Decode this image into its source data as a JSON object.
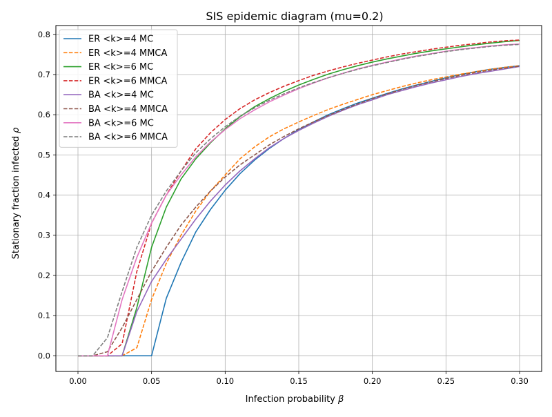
{
  "chart_data": {
    "type": "line",
    "title": "SIS epidemic diagram (mu=0.2)",
    "xlabel": "Infection probability",
    "xlabel_symbol": "β",
    "ylabel": "Stationary fraction infected",
    "ylabel_symbol": "ρ",
    "xlim": [
      -0.015,
      0.315
    ],
    "ylim": [
      -0.039,
      0.822
    ],
    "xticks": [
      0.0,
      0.05,
      0.1,
      0.15,
      0.2,
      0.25,
      0.3
    ],
    "xtick_labels": [
      "0.00",
      "0.05",
      "0.10",
      "0.15",
      "0.20",
      "0.25",
      "0.30"
    ],
    "yticks": [
      0.0,
      0.1,
      0.2,
      0.3,
      0.4,
      0.5,
      0.6,
      0.7,
      0.8
    ],
    "ytick_labels": [
      "0.0",
      "0.1",
      "0.2",
      "0.3",
      "0.4",
      "0.5",
      "0.6",
      "0.7",
      "0.8"
    ],
    "grid": true,
    "legend_position": "top-left",
    "x": [
      0.0,
      0.01,
      0.02,
      0.03,
      0.04,
      0.05,
      0.06,
      0.07,
      0.08,
      0.09,
      0.1,
      0.11,
      0.12,
      0.13,
      0.14,
      0.15,
      0.16,
      0.17,
      0.18,
      0.19,
      0.2,
      0.21,
      0.22,
      0.23,
      0.24,
      0.25,
      0.26,
      0.27,
      0.28,
      0.29,
      0.3
    ],
    "series": [
      {
        "name": "ER <k>=4 MC",
        "color": "#1f77b4",
        "dash": "solid",
        "values": [
          0.0,
          0.0,
          0.0,
          0.0,
          0.0,
          0.0,
          0.143,
          0.232,
          0.308,
          0.364,
          0.412,
          0.453,
          0.487,
          0.516,
          0.541,
          0.563,
          0.582,
          0.6,
          0.615,
          0.629,
          0.641,
          0.653,
          0.664,
          0.674,
          0.683,
          0.692,
          0.7,
          0.707,
          0.713,
          0.718,
          0.722
        ]
      },
      {
        "name": "ER <k>=4 MMCA",
        "color": "#ff7f0e",
        "dash": "dashed",
        "values": [
          0.0,
          0.0,
          0.0,
          0.0,
          0.02,
          0.14,
          0.23,
          0.3,
          0.36,
          0.41,
          0.45,
          0.49,
          0.52,
          0.545,
          0.565,
          0.582,
          0.598,
          0.613,
          0.626,
          0.638,
          0.65,
          0.66,
          0.67,
          0.679,
          0.687,
          0.694,
          0.701,
          0.707,
          0.713,
          0.718,
          0.722
        ]
      },
      {
        "name": "ER <k>=6 MC",
        "color": "#2ca02c",
        "dash": "solid",
        "values": [
          0.0,
          0.0,
          0.0,
          0.0,
          0.12,
          0.27,
          0.37,
          0.44,
          0.49,
          0.53,
          0.565,
          0.595,
          0.62,
          0.64,
          0.658,
          0.674,
          0.688,
          0.701,
          0.712,
          0.722,
          0.731,
          0.739,
          0.746,
          0.753,
          0.759,
          0.764,
          0.769,
          0.774,
          0.778,
          0.782,
          0.785
        ]
      },
      {
        "name": "ER <k>=6 MMCA",
        "color": "#d62728",
        "dash": "dashed",
        "values": [
          0.0,
          0.0,
          0.0,
          0.03,
          0.21,
          0.33,
          0.4,
          0.46,
          0.515,
          0.555,
          0.588,
          0.615,
          0.637,
          0.655,
          0.671,
          0.685,
          0.698,
          0.709,
          0.719,
          0.728,
          0.736,
          0.744,
          0.751,
          0.757,
          0.763,
          0.768,
          0.773,
          0.777,
          0.781,
          0.784,
          0.786
        ]
      },
      {
        "name": "BA <k>=4 MC",
        "color": "#9467bd",
        "dash": "solid",
        "values": [
          0.0,
          0.0,
          0.0,
          0.0,
          0.11,
          0.185,
          0.24,
          0.29,
          0.34,
          0.385,
          0.425,
          0.46,
          0.49,
          0.518,
          0.541,
          0.561,
          0.579,
          0.596,
          0.611,
          0.625,
          0.637,
          0.65,
          0.66,
          0.67,
          0.679,
          0.687,
          0.695,
          0.702,
          0.708,
          0.714,
          0.72
        ]
      },
      {
        "name": "BA <k>=4 MMCA",
        "color": "#8c564b",
        "dash": "dashed",
        "values": [
          0.0,
          0.0,
          0.01,
          0.07,
          0.14,
          0.21,
          0.27,
          0.325,
          0.37,
          0.41,
          0.445,
          0.475,
          0.5,
          0.525,
          0.546,
          0.565,
          0.582,
          0.598,
          0.613,
          0.627,
          0.64,
          0.652,
          0.663,
          0.673,
          0.682,
          0.69,
          0.698,
          0.705,
          0.711,
          0.716,
          0.721
        ]
      },
      {
        "name": "BA <k>=6 MC",
        "color": "#e377c2",
        "dash": "solid",
        "values": [
          0.0,
          0.0,
          0.0,
          0.14,
          0.245,
          0.33,
          0.4,
          0.45,
          0.495,
          0.532,
          0.563,
          0.59,
          0.612,
          0.632,
          0.649,
          0.665,
          0.679,
          0.692,
          0.703,
          0.714,
          0.723,
          0.731,
          0.739,
          0.746,
          0.752,
          0.758,
          0.763,
          0.767,
          0.771,
          0.774,
          0.776
        ]
      },
      {
        "name": "BA <k>=6 MMCA",
        "color": "#7f7f7f",
        "dash": "dashed",
        "values": [
          0.0,
          0.0,
          0.045,
          0.16,
          0.27,
          0.35,
          0.41,
          0.46,
          0.505,
          0.54,
          0.57,
          0.596,
          0.617,
          0.636,
          0.652,
          0.667,
          0.68,
          0.692,
          0.703,
          0.713,
          0.722,
          0.73,
          0.738,
          0.745,
          0.751,
          0.757,
          0.762,
          0.766,
          0.77,
          0.773,
          0.775
        ]
      }
    ]
  }
}
